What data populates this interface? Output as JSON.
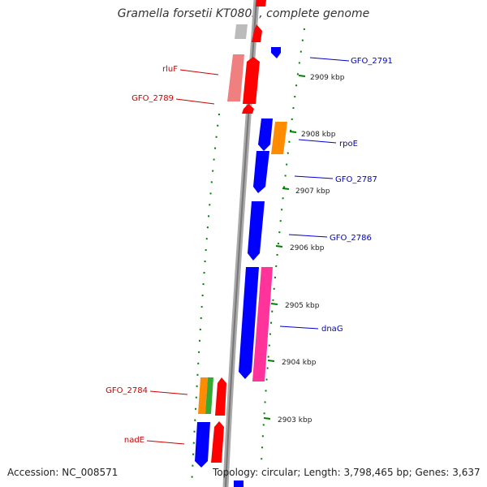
{
  "title": "Gramella forsetii KT0803, complete genome",
  "footer": {
    "accession": "Accession: NC_008571",
    "topology": "Topology: circular; Length: 3,798,465 bp; Genes: 3,637"
  },
  "kbp_ticks": [
    "2909 kbp",
    "2908 kbp",
    "2907 kbp",
    "2906 kbp",
    "2905 kbp",
    "2904 kbp",
    "2903 kbp"
  ],
  "gene_labels": [
    {
      "name": "GFO_2791",
      "side": "right",
      "color": "#0000cc"
    },
    {
      "name": "rpoE",
      "side": "right",
      "color": "#0000cc"
    },
    {
      "name": "GFO_2787",
      "side": "right",
      "color": "#0000cc"
    },
    {
      "name": "GFO_2786",
      "side": "right",
      "color": "#0000cc"
    },
    {
      "name": "dnaG",
      "side": "right",
      "color": "#0000cc"
    },
    {
      "name": "rluF",
      "side": "left",
      "color": "#cc0000"
    },
    {
      "name": "GFO_2789",
      "side": "left",
      "color": "#cc0000"
    },
    {
      "name": "GFO_2784",
      "side": "left",
      "color": "#cc0000"
    },
    {
      "name": "nadE",
      "side": "left",
      "color": "#cc0000"
    }
  ],
  "colors": {
    "forward_strand": "#ff0000",
    "reverse_strand": "#0000ff",
    "backbone": "#999999",
    "tick": "#008000",
    "orange_gene": "#ff8c00",
    "pink_gene": "#ff3399",
    "green_gene": "#33aa33"
  }
}
